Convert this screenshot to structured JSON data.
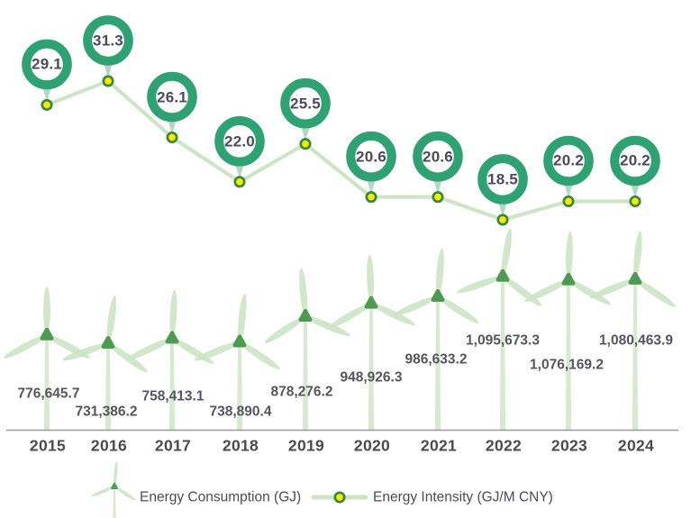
{
  "chart_data": {
    "type": "combo",
    "subtype": "pictorial-bar (wind turbines) + line with ring-badge markers",
    "title": "",
    "categories": [
      "2015",
      "2016",
      "2017",
      "2018",
      "2019",
      "2020",
      "2021",
      "2022",
      "2023",
      "2024"
    ],
    "series": [
      {
        "name": "Energy Consumption (GJ)",
        "type": "bar",
        "marker": "wind-turbine",
        "values": [
          776645.7,
          731386.2,
          758413.1,
          738890.4,
          878276.2,
          948926.3,
          986633.2,
          1095673.3,
          1076169.2,
          1080463.9
        ],
        "value_labels": [
          "776,645.7",
          "731,386.2",
          "758,413.1",
          "738,890.4",
          "878,276.2",
          "948,926.3",
          "986,633.2",
          "1,095,673.3",
          "1,076,169.2",
          "1,080,463.9"
        ]
      },
      {
        "name": "Energy Intensity (GJ/M CNY)",
        "type": "line",
        "marker": "ring-badge",
        "values": [
          29.1,
          31.3,
          26.1,
          22.0,
          25.5,
          20.6,
          20.6,
          18.5,
          20.2,
          20.2
        ],
        "value_labels": [
          "29.1",
          "31.3",
          "26.1",
          "22.0",
          "25.5",
          "20.6",
          "20.6",
          "18.5",
          "20.2",
          "20.2"
        ]
      }
    ],
    "legend_position": "bottom",
    "grid": false,
    "colors": {
      "ring_green": "#2EA273",
      "marker_yellow": "#F9EA00",
      "marker_border_green": "#38883F",
      "line_light_green": "#CDE5C6",
      "blade_green": "#CBE4C3",
      "pole_green": "#D2E8CB",
      "hub_green": "#4D9B50",
      "pointer_green": "#AFD9C2",
      "axis_gray": "#9A9A9A",
      "badge_text": "#4B4A5E",
      "value_text": "#55555E",
      "year_text": "#4A4A52",
      "legend_text": "#4C4C54",
      "badge_fill": "#FFFFFF"
    }
  },
  "legend": {
    "items": [
      {
        "icon": "wind-turbine-icon",
        "label": "Energy Consumption (GJ)"
      },
      {
        "icon": "line-dot-icon",
        "label": "Energy Intensity (GJ/M CNY)"
      }
    ]
  }
}
